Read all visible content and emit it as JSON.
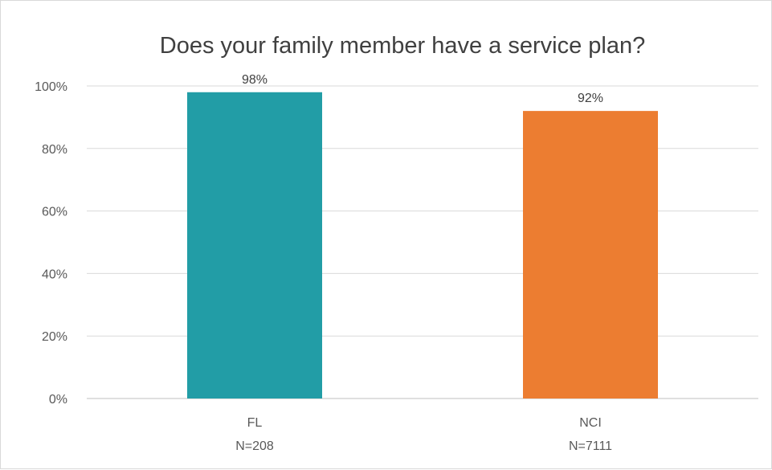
{
  "chart_data": {
    "type": "bar",
    "title": "Does your family member have a service plan?",
    "categories": [
      {
        "line1": "FL",
        "line2": "N=208"
      },
      {
        "line1": "NCI",
        "line2": "N=7111"
      }
    ],
    "series": [
      {
        "values": [
          98,
          92
        ],
        "data_labels": [
          "98%",
          "92%"
        ],
        "colors": [
          "#229da6",
          "#ec7d31"
        ]
      }
    ],
    "yticks": [
      {
        "value": 0,
        "label": "0%"
      },
      {
        "value": 20,
        "label": "20%"
      },
      {
        "value": 40,
        "label": "40%"
      },
      {
        "value": 60,
        "label": "60%"
      },
      {
        "value": 80,
        "label": "80%"
      },
      {
        "value": 100,
        "label": "100%"
      }
    ],
    "ylim": [
      0,
      100
    ],
    "grid": true,
    "legend": "none"
  }
}
